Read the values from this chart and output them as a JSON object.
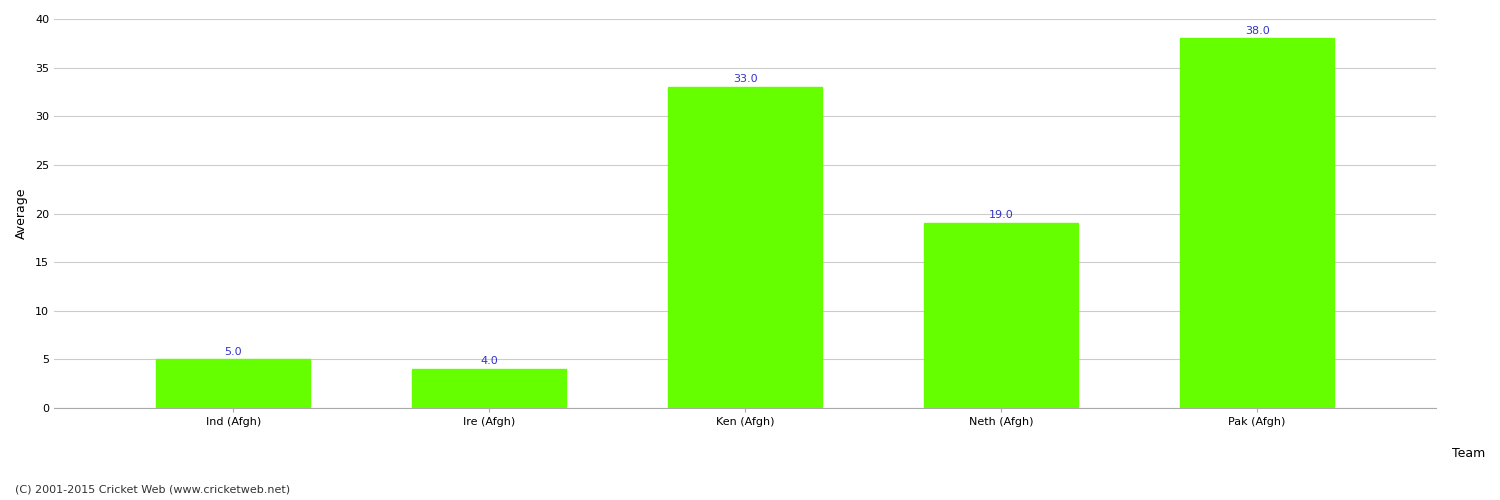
{
  "categories": [
    "Ind (Afgh)",
    "Ire (Afgh)",
    "Ken (Afgh)",
    "Neth (Afgh)",
    "Pak (Afgh)"
  ],
  "values": [
    5.0,
    4.0,
    33.0,
    19.0,
    38.0
  ],
  "bar_color": "#66ff00",
  "bar_edgecolor": "#66ff00",
  "label_color": "#3333cc",
  "label_fontsize": 8,
  "xlabel": "Team",
  "ylabel": "Average",
  "ylim": [
    0,
    40
  ],
  "yticks": [
    0,
    5,
    10,
    15,
    20,
    25,
    30,
    35,
    40
  ],
  "grid_color": "#cccccc",
  "background_color": "#ffffff",
  "axis_label_fontsize": 9,
  "tick_fontsize": 8,
  "footer_text": "(C) 2001-2015 Cricket Web (www.cricketweb.net)",
  "footer_fontsize": 8,
  "footer_color": "#333333",
  "bar_width": 0.6
}
